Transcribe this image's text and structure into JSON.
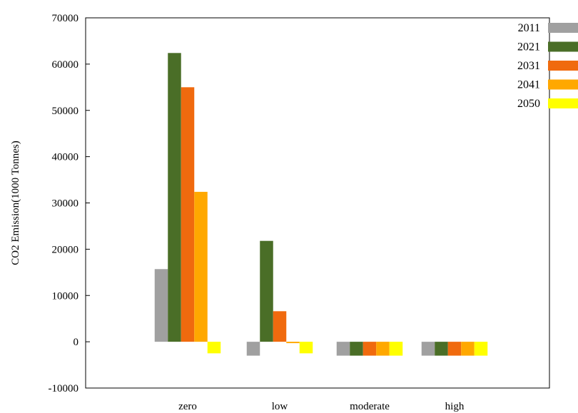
{
  "chart_data": {
    "type": "bar",
    "title": "",
    "xlabel": "",
    "ylabel": "CO2 Emission(1000 Tonnes)",
    "ylim": [
      -10000,
      70000
    ],
    "yticks": [
      -10000,
      0,
      10000,
      20000,
      30000,
      40000,
      50000,
      60000,
      70000
    ],
    "ytick_labels": [
      "-10000",
      "0",
      "10000",
      "20000",
      "30000",
      "40000",
      "50000",
      "60000",
      "70000"
    ],
    "categories": [
      "zero",
      "low",
      "moderate",
      "high"
    ],
    "grid": false,
    "legend_position": "top-right",
    "series": [
      {
        "name": "2011",
        "color": "#a0a0a0",
        "values": [
          15700,
          -3000,
          -3000,
          -3000
        ]
      },
      {
        "name": "2021",
        "color": "#4a6e27",
        "values": [
          62400,
          21800,
          -3000,
          -3000
        ]
      },
      {
        "name": "2031",
        "color": "#f06a0e",
        "values": [
          55000,
          6600,
          -3000,
          -3000
        ]
      },
      {
        "name": "2041",
        "color": "#ffa800",
        "values": [
          32400,
          -300,
          -3000,
          -3000
        ]
      },
      {
        "name": "2050",
        "color": "#ffff00",
        "values": [
          -2500,
          -2500,
          -3000,
          -3000
        ]
      }
    ]
  }
}
